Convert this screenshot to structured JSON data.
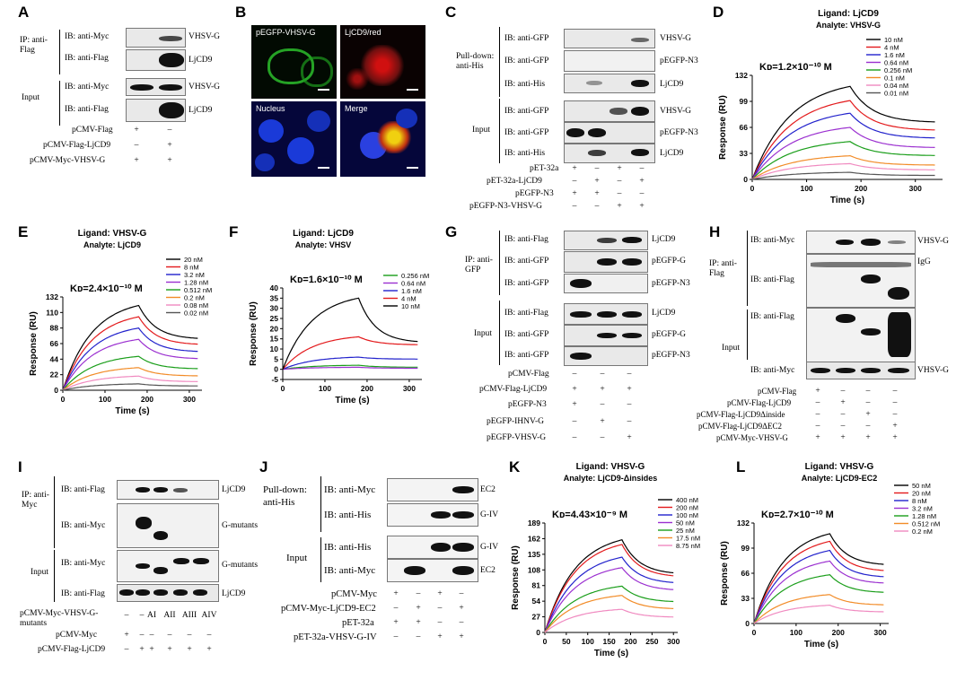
{
  "panels": {
    "A": {
      "label": "A",
      "ip_label": "IP: anti-Flag",
      "input_label": "Input",
      "rows": [
        "IB: anti-Myc",
        "IB: anti-Flag",
        "IB: anti-Myc",
        "IB: anti-Flag"
      ],
      "targets": [
        "VHSV-G",
        "LjCD9",
        "VHSV-G",
        "LjCD9"
      ],
      "plasmids": [
        "pCMV-Flag",
        "pCMV-Flag-LjCD9",
        "pCMV-Myc-VHSV-G"
      ],
      "signs": [
        [
          "+",
          "–"
        ],
        [
          "–",
          "+"
        ],
        [
          "+",
          "+"
        ]
      ]
    },
    "B": {
      "label": "B",
      "tiles": [
        "pEGFP-VHSV-G",
        "LjCD9/red",
        "Nucleus",
        "Merge"
      ]
    },
    "C": {
      "label": "C",
      "pulldown_label": "Pull-down: anti-His",
      "input_label": "Input",
      "rows": [
        "IB: anti-GFP",
        "IB: anti-GFP",
        "IB: anti-His",
        "IB: anti-GFP",
        "IB: anti-GFP",
        "IB: anti-His"
      ],
      "targets": [
        "VHSV-G",
        "pEGFP-N3",
        "LjCD9",
        "VHSV-G",
        "pEGFP-N3",
        "LjCD9"
      ],
      "plasmids": [
        "pET-32a",
        "pET-32a-LjCD9",
        "pEGFP-N3",
        "pEGFP-N3-VHSV-G"
      ],
      "signs": [
        [
          "+",
          "–",
          "+",
          "–"
        ],
        [
          "–",
          "+",
          "–",
          "+"
        ],
        [
          "+",
          "+",
          "–",
          "–"
        ],
        [
          "–",
          "–",
          "+",
          "+"
        ]
      ]
    },
    "G": {
      "label": "G",
      "ip_label": "IP: anti-GFP",
      "input_label": "Input",
      "rows": [
        "IB: anti-Flag",
        "IB: anti-GFP",
        "IB: anti-GFP",
        "IB: anti-Flag",
        "IB: anti-GFP",
        "IB: anti-GFP"
      ],
      "targets": [
        "LjCD9",
        "pEGFP-G",
        "pEGFP-N3",
        "LjCD9",
        "pEGFP-G",
        "pEGFP-N3"
      ],
      "plasmids": [
        "pCMV-Flag",
        "pCMV-Flag-LjCD9",
        "pEGFP-N3",
        "pEGFP-IHNV-G",
        "pEGFP-VHSV-G"
      ],
      "signs": [
        [
          "–",
          "–",
          "–"
        ],
        [
          "+",
          "+",
          "+"
        ],
        [
          "+",
          "–",
          "–"
        ],
        [
          "–",
          "+",
          "–"
        ],
        [
          "–",
          "–",
          "+"
        ]
      ]
    },
    "H": {
      "label": "H",
      "ip_label": "IP: anti-Flag",
      "input_label": "Input",
      "rows": [
        "IB: anti-Myc",
        "IB: anti-Flag",
        "IB: anti-Flag",
        "IB: anti-Myc"
      ],
      "targets": [
        "VHSV-G",
        "IgG",
        "",
        "VHSV-G"
      ],
      "plasmids": [
        "pCMV-Flag",
        "pCMV-Flag-LjCD9",
        "pCMV-Flag-LjCD9Δinside",
        "pCMV-Flag-LjCD9ΔEC2",
        "pCMV-Myc-VHSV-G"
      ],
      "signs": [
        [
          "+",
          "–",
          "–",
          "–"
        ],
        [
          "–",
          "+",
          "–",
          "–"
        ],
        [
          "–",
          "–",
          "+",
          "–"
        ],
        [
          "–",
          "–",
          "–",
          "+"
        ],
        [
          "+",
          "+",
          "+",
          "+"
        ]
      ]
    },
    "I": {
      "label": "I",
      "ip_label": "IP: anti-Myc",
      "input_label": "Input",
      "rows": [
        "IB: anti-Flag",
        "IB: anti-Myc",
        "IB: anti-Myc",
        "IB: anti-Flag"
      ],
      "targets": [
        "LjCD9",
        "G-mutants",
        "G-mutants",
        "LjCD9"
      ],
      "plasmids": [
        "pCMV-Myc-VHSV-G-mutants",
        "pCMV-Myc",
        "pCMV-Flag-LjCD9"
      ],
      "signs": [
        [
          "–",
          "–",
          "AI",
          "AII",
          "AIII",
          "AIV"
        ],
        [
          "+",
          "–",
          "–",
          "–",
          "–",
          "–"
        ],
        [
          "–",
          "+",
          "+",
          "+",
          "+",
          "+"
        ]
      ]
    },
    "J": {
      "label": "J",
      "pulldown_label": "Pull-down: anti-His",
      "input_label": "Input",
      "rows": [
        "IB: anti-Myc",
        "IB: anti-His",
        "IB: anti-His",
        "IB: anti-Myc"
      ],
      "targets": [
        "EC2",
        "G-IV",
        "G-IV",
        "EC2"
      ],
      "plasmids": [
        "pCMV-Myc",
        "pCMV-Myc-LjCD9-EC2",
        "pET-32a",
        "pET-32a-VHSV-G-IV"
      ],
      "signs": [
        [
          "+",
          "–",
          "+",
          "–"
        ],
        [
          "–",
          "+",
          "–",
          "+"
        ],
        [
          "+",
          "+",
          "–",
          "–"
        ],
        [
          "–",
          "–",
          "+",
          "+"
        ]
      ]
    }
  },
  "chart_data": [
    {
      "panel": "D",
      "type": "line",
      "title": "Ligand: LjCD9",
      "subtitle": "Analyte: VHSV-G",
      "kd_label": "Kᴅ=1.2×10⁻¹⁰ M",
      "xlabel": "Time (s)",
      "ylabel": "Response (RU)",
      "xlim": [
        0,
        350
      ],
      "ylim": [
        0,
        132
      ],
      "xticks": [
        0,
        100,
        200,
        300
      ],
      "yticks": [
        0,
        33,
        66,
        99,
        132
      ],
      "legend_position": "top-right",
      "series": [
        {
          "name": "10 nM",
          "color": "#000000",
          "peak": 118,
          "end": 72
        },
        {
          "name": "4 nM",
          "color": "#e31a1c",
          "peak": 100,
          "end": 62
        },
        {
          "name": "1.6 nM",
          "color": "#2222cc",
          "peak": 84,
          "end": 52
        },
        {
          "name": "0.64 nM",
          "color": "#9b30d0",
          "peak": 66,
          "end": 40
        },
        {
          "name": "0.256 nM",
          "color": "#1a9e1a",
          "peak": 48,
          "end": 30
        },
        {
          "name": "0.1 nM",
          "color": "#f28c28",
          "peak": 30,
          "end": 18
        },
        {
          "name": "0.04 nM",
          "color": "#f08ac0",
          "peak": 20,
          "end": 12
        },
        {
          "name": "0.01 nM",
          "color": "#555555",
          "peak": 9,
          "end": 5
        }
      ]
    },
    {
      "panel": "E",
      "type": "line",
      "title": "Ligand: VHSV-G",
      "subtitle": "Analyte: LjCD9",
      "kd_label": "Kᴅ=2.4×10⁻¹⁰ M",
      "xlabel": "Time (s)",
      "ylabel": "Response (RU)",
      "xlim": [
        0,
        330
      ],
      "ylim": [
        0,
        132
      ],
      "xticks": [
        0,
        100,
        200,
        300
      ],
      "yticks": [
        0,
        22,
        44,
        66,
        88,
        110,
        132
      ],
      "legend_position": "top-right",
      "series": [
        {
          "name": "20 nM",
          "color": "#000000",
          "peak": 120,
          "end": 72
        },
        {
          "name": "8 nM",
          "color": "#e31a1c",
          "peak": 104,
          "end": 64
        },
        {
          "name": "3.2 nM",
          "color": "#2222cc",
          "peak": 88,
          "end": 54
        },
        {
          "name": "1.28 nM",
          "color": "#9b30d0",
          "peak": 72,
          "end": 44
        },
        {
          "name": "0.512 nM",
          "color": "#1a9e1a",
          "peak": 48,
          "end": 30
        },
        {
          "name": "0.2 nM",
          "color": "#f28c28",
          "peak": 32,
          "end": 20
        },
        {
          "name": "0.08 nM",
          "color": "#f08ac0",
          "peak": 20,
          "end": 12
        },
        {
          "name": "0.02 nM",
          "color": "#555555",
          "peak": 9,
          "end": 6
        }
      ]
    },
    {
      "panel": "F",
      "type": "line",
      "title": "Ligand: LjCD9",
      "subtitle": "Analyte: VHSV",
      "kd_label": "Kᴅ=1.6×10⁻¹⁰ M",
      "xlabel": "Time (s)",
      "ylabel": "Response (RU)",
      "xlim": [
        0,
        330
      ],
      "ylim": [
        -5,
        40
      ],
      "xticks": [
        0,
        100,
        200,
        300
      ],
      "yticks": [
        -5,
        0,
        5,
        10,
        15,
        20,
        25,
        30,
        35,
        40
      ],
      "legend_position": "top-right",
      "series": [
        {
          "name": "0.256 nM",
          "color": "#1a9e1a",
          "peak": 2,
          "end": 1
        },
        {
          "name": "0.64 nM",
          "color": "#9b30d0",
          "peak": 1,
          "end": 0.5
        },
        {
          "name": "1.6 nM",
          "color": "#2222cc",
          "peak": 6,
          "end": 5
        },
        {
          "name": "4 nM",
          "color": "#e31a1c",
          "peak": 16,
          "end": 12
        },
        {
          "name": "10 nM",
          "color": "#000000",
          "peak": 35,
          "end": 13
        }
      ]
    },
    {
      "panel": "K",
      "type": "line",
      "title": "Ligand: VHSV-G",
      "subtitle": "Analyte: LjCD9-Δinsides",
      "kd_label": "Kᴅ=4.43×10⁻⁹ M",
      "xlabel": "Time (s)",
      "ylabel": "Response (RU)",
      "xlim": [
        0,
        310
      ],
      "ylim": [
        0,
        189
      ],
      "xticks": [
        0,
        50,
        100,
        150,
        200,
        250,
        300
      ],
      "yticks": [
        0,
        27,
        54,
        81,
        108,
        135,
        162,
        189
      ],
      "legend_position": "top-right",
      "series": [
        {
          "name": "400 nM",
          "color": "#000000",
          "peak": 160,
          "end": 100
        },
        {
          "name": "200 nM",
          "color": "#e31a1c",
          "peak": 152,
          "end": 95
        },
        {
          "name": "100 nM",
          "color": "#2222cc",
          "peak": 130,
          "end": 84
        },
        {
          "name": "50 nM",
          "color": "#9b30d0",
          "peak": 112,
          "end": 72
        },
        {
          "name": "25 nM",
          "color": "#1a9e1a",
          "peak": 80,
          "end": 52
        },
        {
          "name": "17.5 nM",
          "color": "#f28c28",
          "peak": 64,
          "end": 40
        },
        {
          "name": "8.75 nM",
          "color": "#f08ac0",
          "peak": 40,
          "end": 26
        }
      ]
    },
    {
      "panel": "L",
      "type": "line",
      "title": "Ligand: VHSV-G",
      "subtitle": "Analyte: LjCD9-EC2",
      "kd_label": "Kᴅ=2.7×10⁻¹⁰ M",
      "xlabel": "Time (s)",
      "ylabel": "Response (RU)",
      "xlim": [
        0,
        320
      ],
      "ylim": [
        0,
        132
      ],
      "xticks": [
        0,
        100,
        200,
        300
      ],
      "yticks": [
        0,
        33,
        66,
        99,
        132
      ],
      "legend_position": "top-right",
      "series": [
        {
          "name": "50 nM",
          "color": "#000000",
          "peak": 118,
          "end": 76
        },
        {
          "name": "20 nM",
          "color": "#e31a1c",
          "peak": 108,
          "end": 68
        },
        {
          "name": "8 nM",
          "color": "#2222cc",
          "peak": 96,
          "end": 60
        },
        {
          "name": "3.2 nM",
          "color": "#9b30d0",
          "peak": 82,
          "end": 52
        },
        {
          "name": "1.28 nM",
          "color": "#1a9e1a",
          "peak": 64,
          "end": 40
        },
        {
          "name": "0.512 nM",
          "color": "#f28c28",
          "peak": 38,
          "end": 24
        },
        {
          "name": "0.2 nM",
          "color": "#f08ac0",
          "peak": 24,
          "end": 15
        }
      ]
    }
  ]
}
